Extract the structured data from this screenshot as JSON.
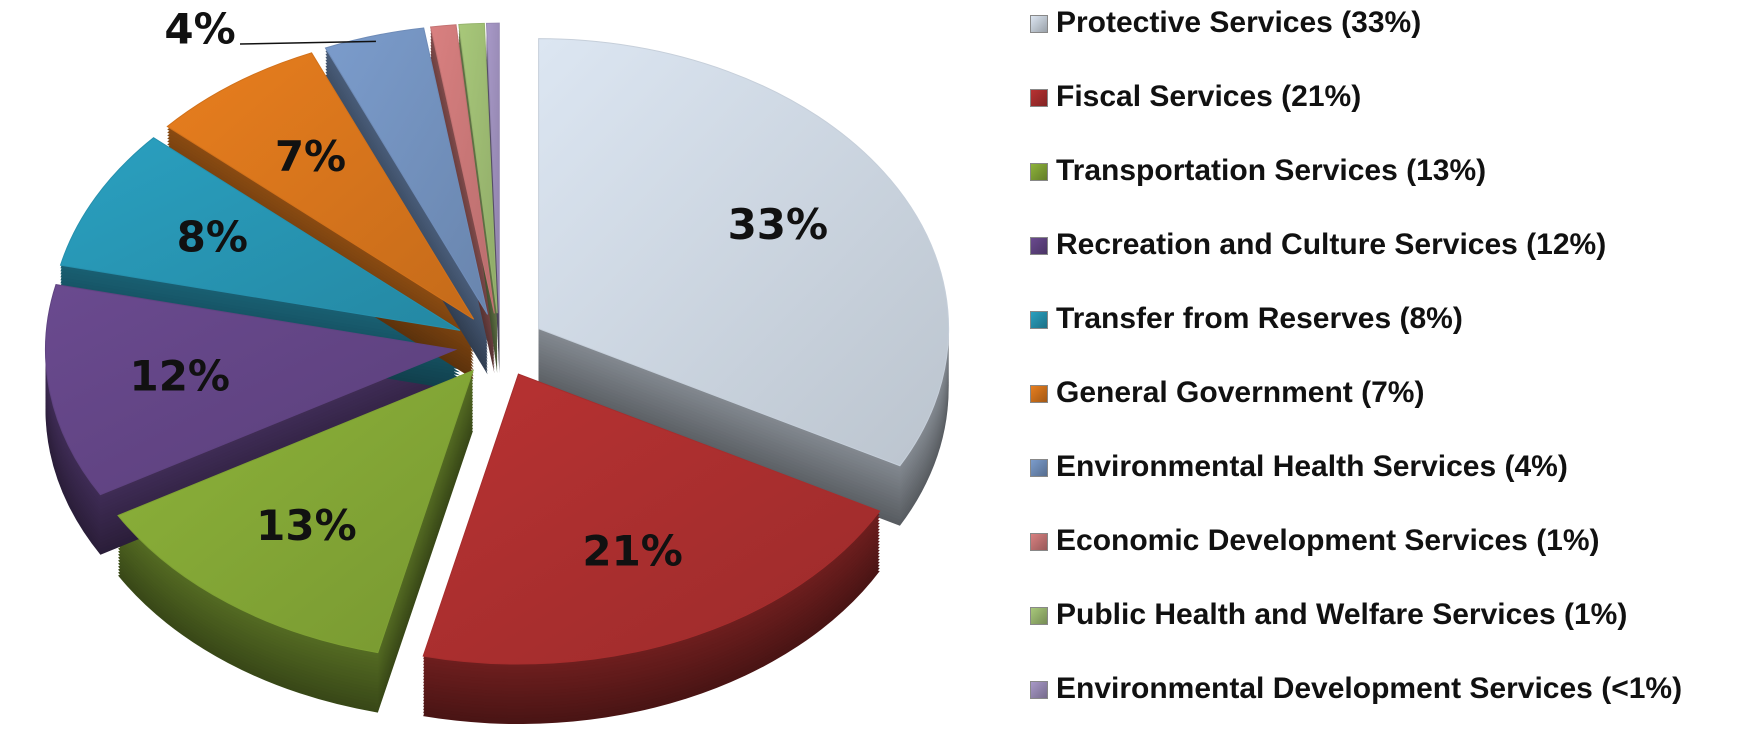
{
  "chart_data": {
    "type": "pie",
    "categories": [
      "Protective Services (33%)",
      "Fiscal Services (21%)",
      "Transportation Services (13%)",
      "Recreation and Culture Services (12%)",
      "Transfer from Reserves (8%)",
      "General Government (7%)",
      "Environmental Health Services (4%)",
      "Economic Development Services (1%)",
      "Public Health and Welfare Services (1%)",
      "Environmental Development Services (<1%)"
    ],
    "values": [
      33,
      21,
      13,
      12,
      8,
      7,
      4,
      1,
      1,
      0.5
    ],
    "value_labels": [
      "33%",
      "21%",
      "13%",
      "12%",
      "8%",
      "7%",
      "4%",
      null,
      null,
      null
    ],
    "colors": [
      "#dce6f2",
      "#b83232",
      "#8db33a",
      "#6a4a8f",
      "#2aa0c0",
      "#e87e1e",
      "#7b9ccc",
      "#d98080",
      "#a8c87a",
      "#a899c8"
    ],
    "legend": "right"
  }
}
